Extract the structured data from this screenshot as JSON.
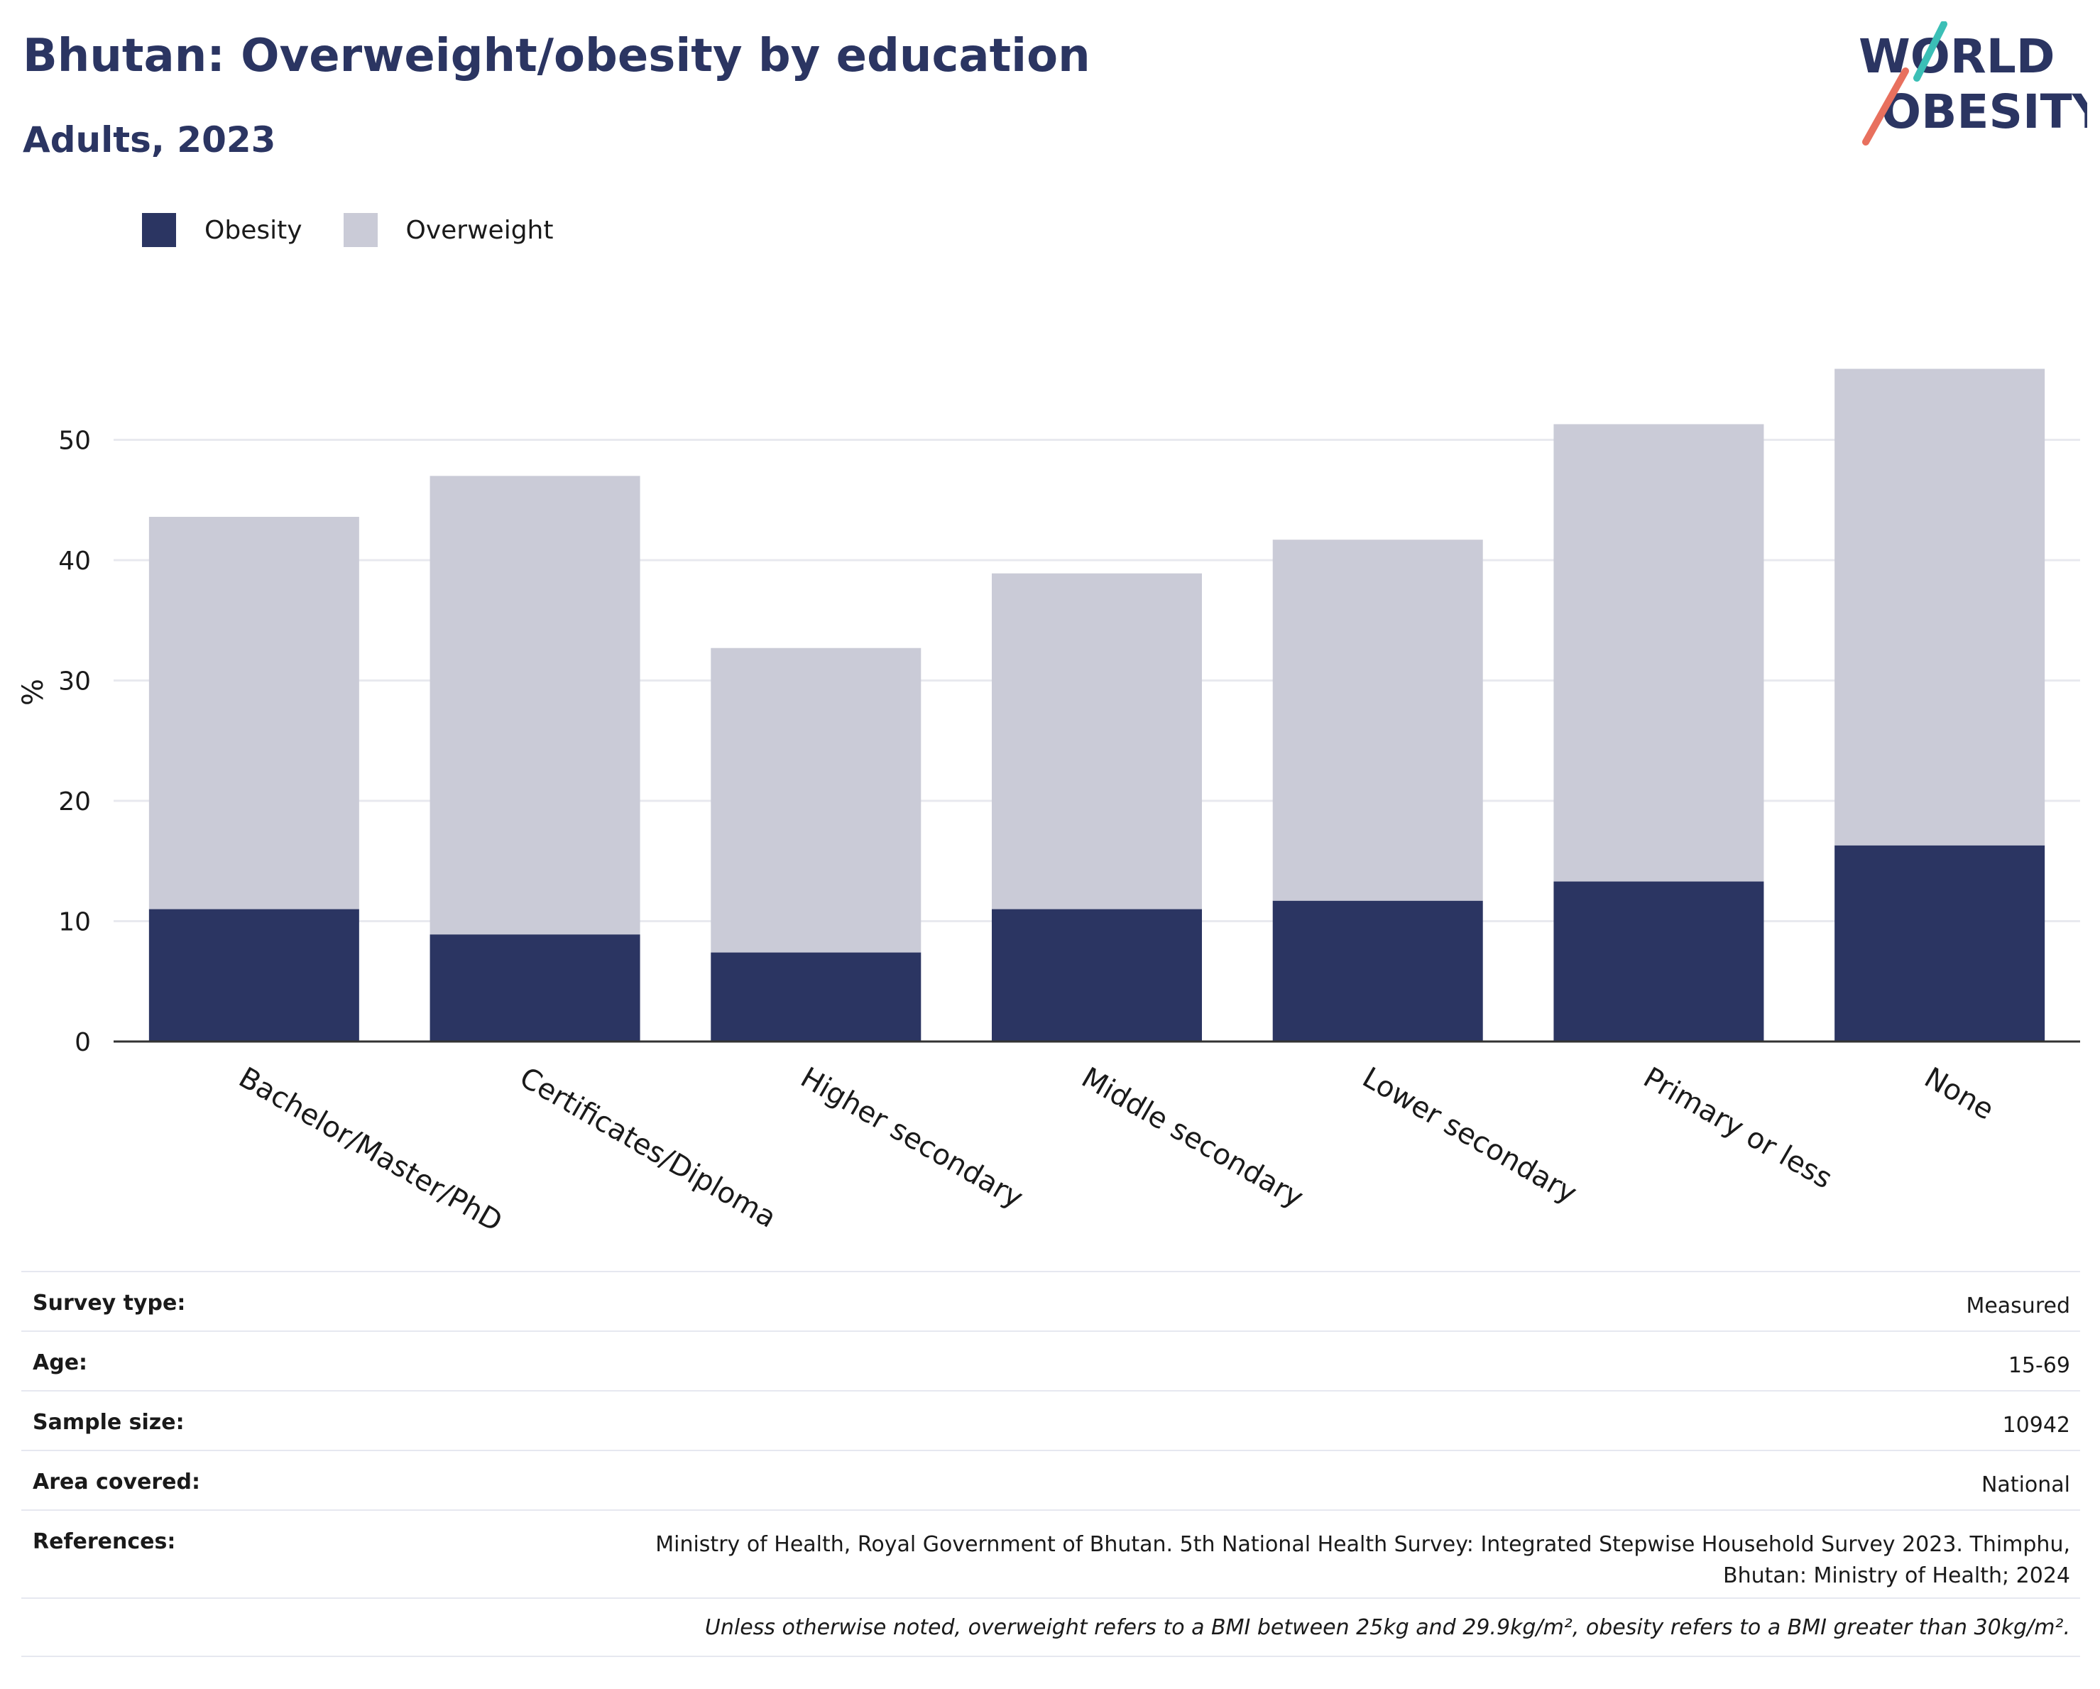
{
  "header": {
    "title": "Bhutan: Overweight/obesity by education",
    "subtitle": "Adults, 2023"
  },
  "logo": {
    "line1": "WORLD",
    "line2": "OBESITY",
    "accent_colors": [
      "#3bbfb6",
      "#e8705e"
    ],
    "text_color": "#2b3562"
  },
  "legend": [
    {
      "label": "Obesity",
      "color": "#2b3562"
    },
    {
      "label": "Overweight",
      "color": "#cacbd7"
    }
  ],
  "chart_data": {
    "type": "bar",
    "stacked": true,
    "categories": [
      "Bachelor/Master/PhD",
      "Certificates/Diploma",
      "Higher secondary",
      "Middle secondary",
      "Lower secondary",
      "Primary or less",
      "None"
    ],
    "series": [
      {
        "name": "Obesity",
        "color": "#2b3562",
        "values": [
          11.0,
          8.9,
          7.4,
          11.0,
          11.7,
          13.3,
          16.3
        ]
      },
      {
        "name": "Overweight",
        "color": "#cacbd7",
        "values": [
          32.6,
          38.1,
          25.3,
          27.9,
          30.0,
          38.0,
          39.6
        ]
      }
    ],
    "ylabel": "%",
    "xlabel": "",
    "ylim": [
      0,
      60
    ],
    "yticks": [
      0,
      10,
      20,
      30,
      40,
      50
    ],
    "grid": true,
    "legend_position": "top-left"
  },
  "meta": {
    "rows": [
      {
        "key": "Survey type:",
        "value": "Measured"
      },
      {
        "key": "Age:",
        "value": "15-69"
      },
      {
        "key": "Sample size:",
        "value": "10942"
      },
      {
        "key": "Area covered:",
        "value": "National"
      },
      {
        "key": "References:",
        "value": "Ministry of Health, Royal Government of Bhutan. 5th National Health Survey: Integrated Stepwise Household Survey 2023. Thimphu, Bhutan: Ministry of Health; 2024"
      }
    ],
    "footnote": "Unless otherwise noted, overweight refers to a BMI between 25kg and 29.9kg/m², obesity refers to a BMI greater than 30kg/m²."
  }
}
